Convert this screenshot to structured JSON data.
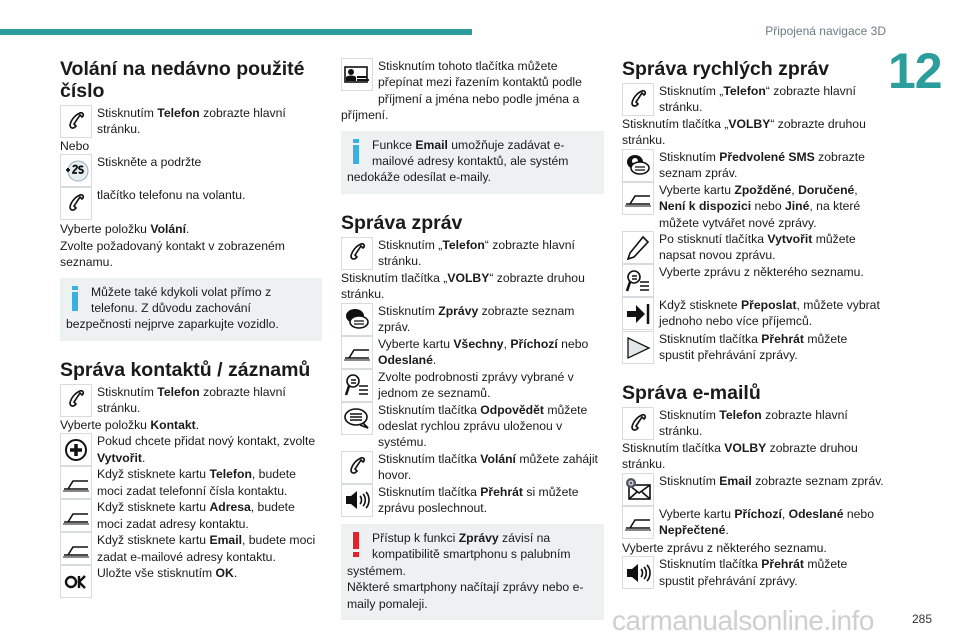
{
  "header": {
    "running_title": "Připojená navigace 3D",
    "chapter": "12",
    "accent": "#2a9d9c"
  },
  "footer": {
    "page_number": "285",
    "watermark": "carmanualsonline.info"
  },
  "columns": [
    [
      {
        "type": "heading",
        "text": "Volání na nedávno použité číslo"
      },
      {
        "type": "icon",
        "icon": "phone-icon",
        "segs": [
          {
            "t": "Stisknutím "
          },
          {
            "t": "Telefon",
            "b": true
          },
          {
            "t": " zobrazte hlavní stránku."
          }
        ]
      },
      {
        "type": "para",
        "segs": [
          {
            "t": "Nebo"
          }
        ]
      },
      {
        "type": "icon",
        "icon": "press-2s-icon",
        "segs": [
          {
            "t": "Stiskněte a podržte"
          }
        ]
      },
      {
        "type": "icon",
        "icon": "phone-icon",
        "segs": [
          {
            "t": "tlačítko telefonu na volantu."
          }
        ],
        "pad": true
      },
      {
        "type": "para",
        "segs": [
          {
            "t": "Vyberte položku "
          },
          {
            "t": "Volání",
            "b": true
          },
          {
            "t": "."
          }
        ]
      },
      {
        "type": "para",
        "segs": [
          {
            "t": "Zvolte požadovaný kontakt v zobrazeném seznamu."
          }
        ]
      },
      {
        "type": "note",
        "kind": "info",
        "segs": [
          {
            "t": "Můžete také kdykoli volat přímo z telefonu. Z důvodu zachování bezpečnosti nejprve zaparkujte vozidlo."
          }
        ]
      },
      {
        "type": "heading",
        "text": "Správa kontaktů / záznamů",
        "gap": true
      },
      {
        "type": "icon",
        "icon": "phone-icon",
        "segs": [
          {
            "t": "Stisknutím "
          },
          {
            "t": "Telefon",
            "b": true
          },
          {
            "t": " zobrazte hlavní stránku."
          }
        ]
      },
      {
        "type": "para",
        "segs": [
          {
            "t": "Vyberte položku "
          },
          {
            "t": "Kontakt",
            "b": true
          },
          {
            "t": "."
          }
        ]
      },
      {
        "type": "icon",
        "icon": "plus-circle-icon",
        "segs": [
          {
            "t": "Pokud chcete přidat nový kontakt, zvolte "
          },
          {
            "t": "Vytvořit",
            "b": true
          },
          {
            "t": "."
          }
        ]
      },
      {
        "type": "icon",
        "icon": "tab-icon",
        "segs": [
          {
            "t": "Když stisknete kartu "
          },
          {
            "t": "Telefon",
            "b": true
          },
          {
            "t": ", budete moci zadat telefonní čísla kontaktu."
          }
        ]
      },
      {
        "type": "icon",
        "icon": "tab-icon",
        "segs": [
          {
            "t": "Když stisknete kartu "
          },
          {
            "t": "Adresa",
            "b": true
          },
          {
            "t": ", budete moci zadat adresy kontaktu."
          }
        ]
      },
      {
        "type": "icon",
        "icon": "tab-icon",
        "segs": [
          {
            "t": "Když stisknete kartu "
          },
          {
            "t": "Email",
            "b": true
          },
          {
            "t": ", budete moci zadat e-mailové adresy kontaktu."
          }
        ]
      },
      {
        "type": "icon",
        "icon": "ok-icon",
        "label": "OK",
        "segs": [
          {
            "t": "Uložte vše stisknutím "
          },
          {
            "t": "OK",
            "b": true
          },
          {
            "t": "."
          }
        ]
      }
    ],
    [
      {
        "type": "icon",
        "icon": "contact-sort-icon",
        "segs": [
          {
            "t": "Stisknutím tohoto tlačítka můžete přepínat mezi řazením kontaktů podle příjmení a jména nebo podle jména a příjmení."
          }
        ]
      },
      {
        "type": "note",
        "kind": "info",
        "segs": [
          {
            "t": "Funkce "
          },
          {
            "t": "Email",
            "b": true
          },
          {
            "t": " umožňuje zadávat e-mailové adresy kontaktů, ale systém nedokáže odesílat e-maily."
          }
        ]
      },
      {
        "type": "heading",
        "text": "Správa zpráv",
        "gap": true
      },
      {
        "type": "icon",
        "icon": "phone-icon",
        "segs": [
          {
            "t": "Stisknutím „"
          },
          {
            "t": "Telefon",
            "b": true
          },
          {
            "t": "“ zobrazte hlavní stránku."
          }
        ]
      },
      {
        "type": "para",
        "segs": [
          {
            "t": "Stisknutím tlačítka „"
          },
          {
            "t": "VOLBY",
            "b": true
          },
          {
            "t": "“ zobrazte druhou stránku."
          }
        ]
      },
      {
        "type": "icon",
        "icon": "sms-icon",
        "segs": [
          {
            "t": "Stisknutím "
          },
          {
            "t": "Zprávy",
            "b": true
          },
          {
            "t": " zobrazte seznam zpráv."
          }
        ]
      },
      {
        "type": "icon",
        "icon": "tab-icon",
        "segs": [
          {
            "t": "Vyberte kartu "
          },
          {
            "t": "Všechny",
            "b": true
          },
          {
            "t": ", "
          },
          {
            "t": "Příchozí",
            "b": true
          },
          {
            "t": " nebo "
          },
          {
            "t": "Odeslané",
            "b": true
          },
          {
            "t": "."
          }
        ]
      },
      {
        "type": "icon",
        "icon": "search-list-icon",
        "segs": [
          {
            "t": "Zvolte podrobnosti zprávy vybrané v jednom ze seznamů."
          }
        ]
      },
      {
        "type": "icon",
        "icon": "speech-bubble-icon",
        "segs": [
          {
            "t": "Stisknutím tlačítka "
          },
          {
            "t": "Odpovědět",
            "b": true
          },
          {
            "t": " můžete odeslat rychlou zprávu uloženou v systému."
          }
        ]
      },
      {
        "type": "icon",
        "icon": "phone-icon",
        "segs": [
          {
            "t": "Stisknutím tlačítka "
          },
          {
            "t": "Volání",
            "b": true
          },
          {
            "t": " můžete zahájit hovor."
          }
        ]
      },
      {
        "type": "icon",
        "icon": "speaker-icon",
        "segs": [
          {
            "t": "Stisknutím tlačítka "
          },
          {
            "t": "Přehrát",
            "b": true
          },
          {
            "t": " si můžete zprávu poslechnout."
          }
        ]
      },
      {
        "type": "note",
        "kind": "warn",
        "segs": [
          {
            "t": "Přístup k funkci "
          },
          {
            "t": "Zprávy",
            "b": true
          },
          {
            "t": " závisí na kompatibilitě smartphonu s palubním systémem."
          }
        ],
        "extra": "Některé smartphony načítají zprávy nebo e-maily pomaleji."
      }
    ],
    [
      {
        "type": "heading",
        "text": "Správa rychlých zpráv"
      },
      {
        "type": "icon",
        "icon": "phone-icon",
        "segs": [
          {
            "t": "Stisknutím „"
          },
          {
            "t": "Telefon",
            "b": true
          },
          {
            "t": "“ zobrazte hlavní stránku."
          }
        ]
      },
      {
        "type": "para",
        "segs": [
          {
            "t": "Stisknutím tlačítka „"
          },
          {
            "t": "VOLBY",
            "b": true
          },
          {
            "t": "“ zobrazte druhou stránku."
          }
        ]
      },
      {
        "type": "icon",
        "icon": "preset-sms-icon",
        "segs": [
          {
            "t": "Stisknutím "
          },
          {
            "t": "Předvolené SMS",
            "b": true
          },
          {
            "t": " zobrazte seznam zpráv."
          }
        ]
      },
      {
        "type": "icon",
        "icon": "tab-icon",
        "segs": [
          {
            "t": "Vyberte kartu "
          },
          {
            "t": "Zpožděné",
            "b": true
          },
          {
            "t": ", "
          },
          {
            "t": "Doručené",
            "b": true
          },
          {
            "t": ", "
          },
          {
            "t": "Není k dispozici",
            "b": true
          },
          {
            "t": " nebo "
          },
          {
            "t": "Jiné",
            "b": true
          },
          {
            "t": ", na které můžete vytvářet nové zprávy."
          }
        ]
      },
      {
        "type": "icon",
        "icon": "pencil-icon",
        "segs": [
          {
            "t": "Po stisknutí tlačítka "
          },
          {
            "t": "Vytvořit",
            "b": true
          },
          {
            "t": " můžete napsat novou zprávu."
          }
        ]
      },
      {
        "type": "icon",
        "icon": "search-list-icon",
        "segs": [
          {
            "t": "Vyberte zprávu z některého seznamu."
          }
        ]
      },
      {
        "type": "icon",
        "icon": "forward-icon",
        "segs": [
          {
            "t": "Když stisknete "
          },
          {
            "t": "Přeposlat",
            "b": true
          },
          {
            "t": ", můžete vybrat jednoho nebo více příjemců."
          }
        ],
        "pad": true
      },
      {
        "type": "icon",
        "icon": "play-icon",
        "segs": [
          {
            "t": "Stisknutím tlačítka "
          },
          {
            "t": "Přehrát",
            "b": true
          },
          {
            "t": " můžete spustit přehrávání zprávy."
          }
        ]
      },
      {
        "type": "heading",
        "text": "Správa e-mailů",
        "gap": true
      },
      {
        "type": "icon",
        "icon": "phone-icon",
        "segs": [
          {
            "t": "Stisknutím "
          },
          {
            "t": "Telefon",
            "b": true
          },
          {
            "t": " zobrazte hlavní stránku."
          }
        ]
      },
      {
        "type": "para",
        "segs": [
          {
            "t": "Stisknutím tlačítka "
          },
          {
            "t": "VOLBY",
            "b": true
          },
          {
            "t": " zobrazte druhou stránku."
          }
        ]
      },
      {
        "type": "icon",
        "icon": "email-icon",
        "segs": [
          {
            "t": "Stisknutím "
          },
          {
            "t": "Email",
            "b": true
          },
          {
            "t": " zobrazte seznam zpráv."
          }
        ]
      },
      {
        "type": "icon",
        "icon": "tab-icon",
        "segs": [
          {
            "t": "Vyberte kartu "
          },
          {
            "t": "Příchozí",
            "b": true
          },
          {
            "t": ", "
          },
          {
            "t": "Odeslané",
            "b": true
          },
          {
            "t": " nebo "
          },
          {
            "t": "Nepřečtené",
            "b": true
          },
          {
            "t": "."
          }
        ],
        "pad": true
      },
      {
        "type": "para",
        "segs": [
          {
            "t": "Vyberte zprávu z některého seznamu."
          }
        ]
      },
      {
        "type": "icon",
        "icon": "speaker-icon",
        "segs": [
          {
            "t": "Stisknutím tlačítka "
          },
          {
            "t": "Přehrát",
            "b": true
          },
          {
            "t": " můžete spustit přehrávání zprávy."
          }
        ]
      }
    ]
  ]
}
